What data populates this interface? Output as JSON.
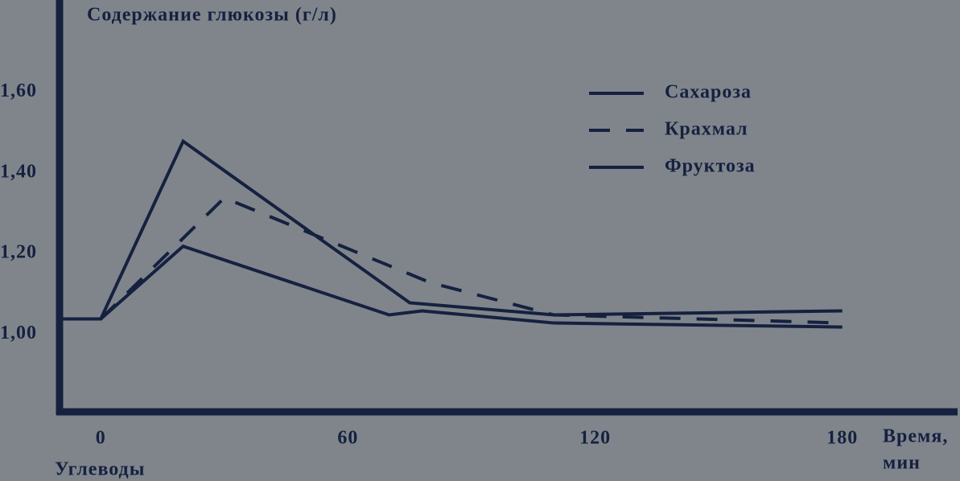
{
  "chart_data": {
    "type": "line",
    "y_label": "Содержание глюкозы (г/л)",
    "x_label": [
      "Время,",
      "мин"
    ],
    "annotation": "Углеводы",
    "xlim": [
      -10,
      207
    ],
    "ylim": [
      0.8,
      1.8
    ],
    "xticks": [
      0,
      60,
      120,
      180
    ],
    "yticks": [
      {
        "value": 1.0,
        "label": "1,00"
      },
      {
        "value": 1.2,
        "label": "1,20"
      },
      {
        "value": 1.4,
        "label": "1,40"
      },
      {
        "value": 1.6,
        "label": "1,60"
      }
    ],
    "color": "#15213f",
    "series": [
      {
        "name": "Сахароза",
        "style": "solid",
        "x": [
          -10,
          0,
          20,
          75,
          110,
          180
        ],
        "values": [
          1.03,
          1.03,
          1.47,
          1.07,
          1.04,
          1.05
        ]
      },
      {
        "name": "Крахмал",
        "style": "dashed",
        "x": [
          0,
          30,
          80,
          110,
          180
        ],
        "values": [
          1.03,
          1.33,
          1.12,
          1.04,
          1.02
        ]
      },
      {
        "name": "Фруктоза",
        "style": "solid",
        "x": [
          0,
          20,
          70,
          78,
          110,
          180
        ],
        "values": [
          1.03,
          1.21,
          1.04,
          1.05,
          1.02,
          1.01
        ]
      }
    ]
  }
}
